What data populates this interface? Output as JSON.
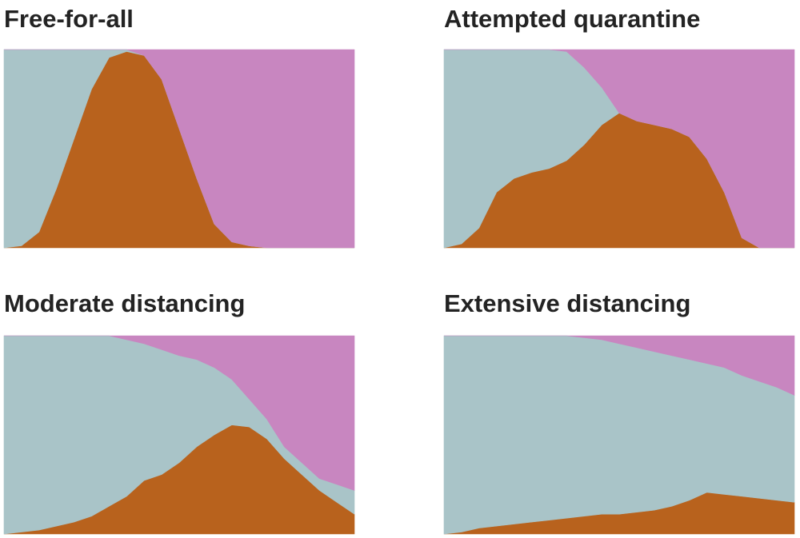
{
  "chart_data": [
    {
      "type": "area",
      "stacked": true,
      "title": "Free-for-all",
      "ylim": [
        0,
        100
      ],
      "series": [
        {
          "color": "#b8621d",
          "values": [
            0,
            1,
            8,
            30,
            55,
            80,
            96,
            99,
            97,
            85,
            60,
            35,
            12,
            3,
            1,
            0,
            0,
            0,
            0,
            0,
            0
          ]
        },
        {
          "color": "#a9c4c8",
          "values": [
            100,
            99,
            92,
            70,
            45,
            20,
            4,
            1,
            0,
            0,
            0,
            0,
            0,
            0,
            0,
            0,
            0,
            0,
            0,
            0,
            0
          ]
        },
        {
          "color": "#c886c0",
          "values": [
            0,
            0,
            0,
            0,
            0,
            0,
            0,
            0,
            3,
            15,
            40,
            65,
            88,
            97,
            99,
            100,
            100,
            100,
            100,
            100,
            100
          ]
        }
      ]
    },
    {
      "type": "area",
      "stacked": true,
      "title": "Attempted quarantine",
      "ylim": [
        0,
        100
      ],
      "series": [
        {
          "color": "#b8621d",
          "values": [
            0,
            2,
            10,
            28,
            35,
            38,
            40,
            44,
            52,
            62,
            68,
            64,
            62,
            60,
            56,
            45,
            28,
            5,
            0,
            0,
            0
          ]
        },
        {
          "color": "#a9c4c8",
          "values": [
            100,
            98,
            90,
            72,
            65,
            62,
            60,
            55,
            39,
            19,
            0,
            0,
            0,
            0,
            0,
            0,
            0,
            0,
            0,
            0,
            0
          ]
        },
        {
          "color": "#c886c0",
          "values": [
            0,
            0,
            0,
            0,
            0,
            0,
            0,
            1,
            9,
            19,
            32,
            36,
            38,
            40,
            44,
            55,
            72,
            95,
            100,
            100,
            100
          ]
        }
      ]
    },
    {
      "type": "area",
      "stacked": true,
      "title": "Moderate distancing",
      "ylim": [
        0,
        100
      ],
      "series": [
        {
          "color": "#b8621d",
          "values": [
            0,
            1,
            2,
            4,
            6,
            9,
            14,
            19,
            27,
            30,
            36,
            44,
            50,
            55,
            54,
            48,
            38,
            30,
            22,
            16,
            10
          ]
        },
        {
          "color": "#a9c4c8",
          "values": [
            100,
            99,
            98,
            96,
            94,
            91,
            86,
            79,
            69,
            63,
            54,
            44,
            34,
            23,
            14,
            10,
            6,
            6,
            6,
            9,
            12
          ]
        },
        {
          "color": "#c886c0",
          "values": [
            0,
            0,
            0,
            0,
            0,
            0,
            0,
            2,
            4,
            7,
            10,
            12,
            16,
            22,
            32,
            42,
            56,
            64,
            72,
            75,
            78
          ]
        }
      ]
    },
    {
      "type": "area",
      "stacked": true,
      "title": "Extensive distancing",
      "ylim": [
        0,
        100
      ],
      "series": [
        {
          "color": "#b8621d",
          "values": [
            0,
            1,
            3,
            4,
            5,
            6,
            7,
            8,
            9,
            10,
            10,
            11,
            12,
            14,
            17,
            21,
            20,
            19,
            18,
            17,
            16
          ]
        },
        {
          "color": "#a9c4c8",
          "values": [
            100,
            99,
            97,
            96,
            95,
            94,
            93,
            92,
            90,
            88,
            86,
            83,
            80,
            76,
            71,
            65,
            64,
            61,
            59,
            57,
            54
          ]
        },
        {
          "color": "#c886c0",
          "values": [
            0,
            0,
            0,
            0,
            0,
            0,
            0,
            0,
            1,
            2,
            4,
            6,
            8,
            10,
            12,
            14,
            16,
            20,
            23,
            26,
            30
          ]
        }
      ]
    }
  ]
}
